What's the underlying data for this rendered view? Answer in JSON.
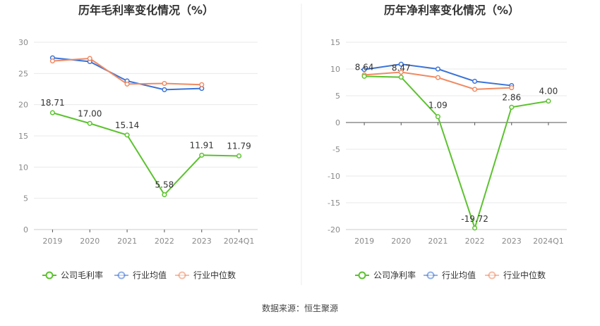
{
  "source": "数据来源：恒生聚源",
  "chart_data": [
    {
      "type": "line",
      "title": "历年毛利率变化情况（%）",
      "categories": [
        "2019",
        "2020",
        "2021",
        "2022",
        "2023",
        "2024Q1"
      ],
      "ylim": [
        0,
        30
      ],
      "yticks": [
        0,
        5,
        10,
        15,
        20,
        25,
        30
      ],
      "grid": true,
      "legend_position": "bottom",
      "series": [
        {
          "name": "公司毛利率",
          "color": "#5cc22f",
          "labeled": true,
          "values": [
            18.71,
            17.0,
            15.14,
            5.58,
            11.91,
            11.79
          ],
          "labels": [
            "18.71",
            "17.00",
            "15.14",
            "5.58",
            "11.91",
            "11.79"
          ]
        },
        {
          "name": "行业均值",
          "color": "#3a73d8",
          "labeled": false,
          "values": [
            27.5,
            26.9,
            23.8,
            22.4,
            22.6,
            null
          ]
        },
        {
          "name": "行业中位数",
          "color": "#f08a62",
          "labeled": false,
          "values": [
            27.0,
            27.4,
            23.3,
            23.4,
            23.2,
            null
          ]
        }
      ]
    },
    {
      "type": "line",
      "title": "历年净利率变化情况（%）",
      "categories": [
        "2019",
        "2020",
        "2021",
        "2022",
        "2023",
        "2024Q1"
      ],
      "ylim": [
        -20,
        15
      ],
      "yticks": [
        -20,
        -15,
        -10,
        -5,
        0,
        5,
        10,
        15
      ],
      "grid": true,
      "legend_position": "bottom",
      "series": [
        {
          "name": "公司净利率",
          "color": "#5cc22f",
          "labeled": true,
          "values": [
            8.64,
            8.47,
            1.09,
            -19.72,
            2.86,
            4.0
          ],
          "labels": [
            "8.64",
            "8.47",
            "1.09",
            "-19.72",
            "2.86",
            "4.00"
          ]
        },
        {
          "name": "行业均值",
          "color": "#3a73d8",
          "labeled": false,
          "values": [
            9.9,
            10.9,
            10.0,
            7.7,
            6.9,
            null
          ]
        },
        {
          "name": "行业中位数",
          "color": "#f08a62",
          "labeled": false,
          "values": [
            8.9,
            9.4,
            8.4,
            6.2,
            6.5,
            null
          ]
        }
      ]
    }
  ]
}
